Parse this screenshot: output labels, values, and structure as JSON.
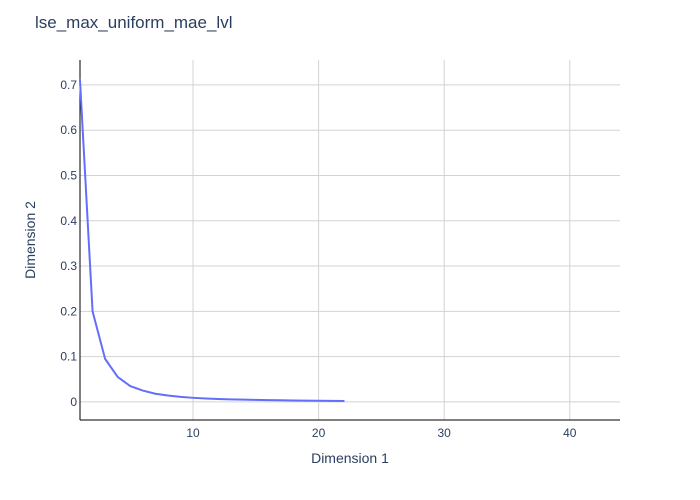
{
  "chart_data": {
    "type": "line",
    "title": "lse_max_uniform_mae_lvl",
    "xlabel": "Dimension 1",
    "ylabel": "Dimension 2",
    "xlim": [
      1,
      44
    ],
    "ylim": [
      -0.04,
      0.755
    ],
    "x_ticks": [
      10,
      20,
      30,
      40
    ],
    "y_ticks": [
      0,
      0.1,
      0.2,
      0.3,
      0.4,
      0.5,
      0.6,
      0.7
    ],
    "grid": true,
    "colors": {
      "line": "#636efa",
      "grid": "#d3d3d3",
      "axis": "#2a3f5f",
      "text": "#2a3f5f"
    },
    "series": [
      {
        "x": [
          1,
          2,
          3,
          4,
          5,
          6,
          7,
          8,
          9,
          10,
          11,
          12,
          13,
          14,
          15,
          16,
          17,
          18,
          19,
          20,
          21,
          22
        ],
        "y": [
          0.71,
          0.2,
          0.095,
          0.055,
          0.035,
          0.025,
          0.018,
          0.014,
          0.011,
          0.009,
          0.0075,
          0.0065,
          0.0055,
          0.005,
          0.0045,
          0.004,
          0.0035,
          0.003,
          0.0028,
          0.0025,
          0.0022,
          0.002
        ]
      }
    ]
  }
}
